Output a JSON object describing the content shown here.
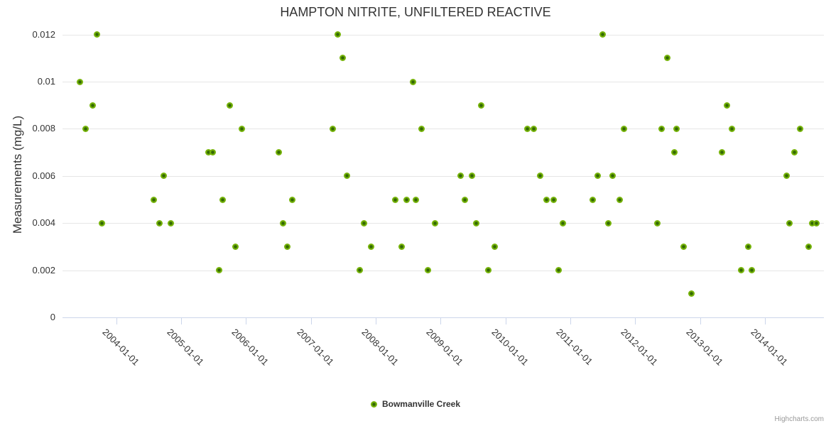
{
  "credits": "Highcharts.com",
  "colors": {
    "point_outer": "#76b30a",
    "point_inner": "#336903",
    "grid": "#e6e6e6",
    "axis": "#ccd6eb",
    "text": "#333333",
    "credits_text": "#999999",
    "background": "#ffffff"
  },
  "chart_data": {
    "type": "scatter",
    "title": "HAMPTON NITRITE, UNFILTERED REACTIVE",
    "xlabel": "",
    "ylabel": "Measurements (mg/L)",
    "legend_position": "bottom-center",
    "grid": "horizontal",
    "xlim": [
      2003.17,
      2014.91
    ],
    "ylim": [
      0,
      0.012
    ],
    "x_ticks": [
      {
        "year": 2004,
        "label": "2004-01-01"
      },
      {
        "year": 2005,
        "label": "2005-01-01"
      },
      {
        "year": 2006,
        "label": "2006-01-01"
      },
      {
        "year": 2007,
        "label": "2007-01-01"
      },
      {
        "year": 2008,
        "label": "2008-01-01"
      },
      {
        "year": 2009,
        "label": "2009-01-01"
      },
      {
        "year": 2010,
        "label": "2010-01-01"
      },
      {
        "year": 2011,
        "label": "2011-01-01"
      },
      {
        "year": 2012,
        "label": "2012-01-01"
      },
      {
        "year": 2013,
        "label": "2013-01-01"
      },
      {
        "year": 2014,
        "label": "2014-01-01"
      }
    ],
    "y_ticks": [
      {
        "value": 0,
        "label": "0"
      },
      {
        "value": 0.002,
        "label": "0.002"
      },
      {
        "value": 0.004,
        "label": "0.004"
      },
      {
        "value": 0.006,
        "label": "0.006"
      },
      {
        "value": 0.008,
        "label": "0.008"
      },
      {
        "value": 0.01,
        "label": "0.01"
      },
      {
        "value": 0.012,
        "label": "0.012"
      }
    ],
    "series": [
      {
        "name": "Bowmanville Creek",
        "color": "#76b30a",
        "points": [
          [
            2003.44,
            0.01
          ],
          [
            2003.53,
            0.008
          ],
          [
            2003.63,
            0.009
          ],
          [
            2003.7,
            0.012
          ],
          [
            2003.78,
            0.004
          ],
          [
            2004.58,
            0.005
          ],
          [
            2004.66,
            0.004
          ],
          [
            2004.73,
            0.006
          ],
          [
            2004.84,
            0.004
          ],
          [
            2005.42,
            0.007
          ],
          [
            2005.49,
            0.007
          ],
          [
            2005.59,
            0.002
          ],
          [
            2005.64,
            0.005
          ],
          [
            2005.75,
            0.009
          ],
          [
            2005.84,
            0.003
          ],
          [
            2005.93,
            0.008
          ],
          [
            2006.5,
            0.007
          ],
          [
            2006.57,
            0.004
          ],
          [
            2006.64,
            0.003
          ],
          [
            2006.71,
            0.005
          ],
          [
            2007.34,
            0.008
          ],
          [
            2007.41,
            0.012
          ],
          [
            2007.49,
            0.011
          ],
          [
            2007.56,
            0.006
          ],
          [
            2007.75,
            0.002
          ],
          [
            2007.82,
            0.004
          ],
          [
            2007.93,
            0.003
          ],
          [
            2008.3,
            0.005
          ],
          [
            2008.4,
            0.003
          ],
          [
            2008.48,
            0.005
          ],
          [
            2008.57,
            0.01
          ],
          [
            2008.62,
            0.005
          ],
          [
            2008.71,
            0.008
          ],
          [
            2008.81,
            0.002
          ],
          [
            2008.91,
            0.004
          ],
          [
            2009.31,
            0.006
          ],
          [
            2009.37,
            0.005
          ],
          [
            2009.48,
            0.006
          ],
          [
            2009.55,
            0.004
          ],
          [
            2009.63,
            0.009
          ],
          [
            2009.73,
            0.002
          ],
          [
            2009.83,
            0.003
          ],
          [
            2010.34,
            0.008
          ],
          [
            2010.44,
            0.008
          ],
          [
            2010.54,
            0.006
          ],
          [
            2010.63,
            0.005
          ],
          [
            2010.74,
            0.005
          ],
          [
            2010.82,
            0.002
          ],
          [
            2010.89,
            0.004
          ],
          [
            2011.34,
            0.005
          ],
          [
            2011.42,
            0.006
          ],
          [
            2011.5,
            0.012
          ],
          [
            2011.59,
            0.004
          ],
          [
            2011.65,
            0.006
          ],
          [
            2011.76,
            0.005
          ],
          [
            2011.83,
            0.008
          ],
          [
            2012.34,
            0.004
          ],
          [
            2012.41,
            0.008
          ],
          [
            2012.49,
            0.011
          ],
          [
            2012.6,
            0.007
          ],
          [
            2012.64,
            0.008
          ],
          [
            2012.75,
            0.003
          ],
          [
            2012.87,
            0.001
          ],
          [
            2013.34,
            0.007
          ],
          [
            2013.41,
            0.009
          ],
          [
            2013.49,
            0.008
          ],
          [
            2013.63,
            0.002
          ],
          [
            2013.74,
            0.003
          ],
          [
            2013.8,
            0.002
          ],
          [
            2014.33,
            0.006
          ],
          [
            2014.38,
            0.004
          ],
          [
            2014.46,
            0.007
          ],
          [
            2014.54,
            0.008
          ],
          [
            2014.68,
            0.003
          ],
          [
            2014.73,
            0.004
          ],
          [
            2014.79,
            0.004
          ]
        ]
      }
    ]
  }
}
